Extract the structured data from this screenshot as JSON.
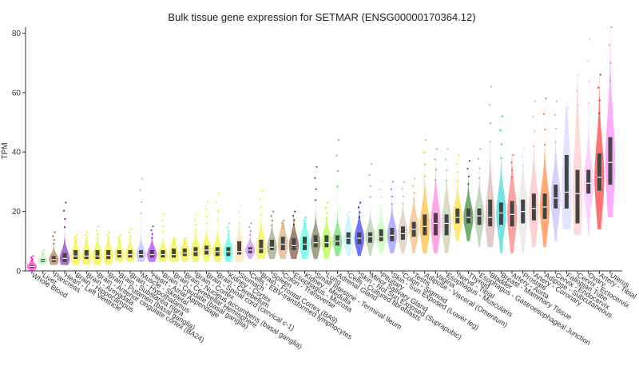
{
  "chart_data": {
    "type": "violin",
    "title": "Bulk tissue gene expression for SETMAR (ENSG00000170364.12)",
    "ylabel": "TPM",
    "xlabel": "",
    "ylim": [
      0,
      82
    ],
    "yticks": [
      0,
      20,
      40,
      60,
      80
    ],
    "grid": false,
    "categories": [
      "Whole Blood",
      "Liver",
      "Pancreas",
      "Heart - Left Ventricle",
      "Brain - Hippocampus",
      "Brain - Amygdala",
      "Brain - Anterior cingulate cortex (BA24)",
      "Brain - Putamen (basal ganglia)",
      "Brain - Substantia nigra",
      "Brain - Hypothalamus",
      "Muscle - Skeletal",
      "Heart - Atrial Appendage",
      "Brain - Caudate (basal ganglia)",
      "Brain - Cerebellar Hemisphere",
      "Brain - Nucleus accumbens (basal ganglia)",
      "Brain - Cortex",
      "Brain - Spinal cord (cervical c-1)",
      "Brain - Cerebellum",
      "Kidney - Cortex",
      "Stomach",
      "Cells - EBV-transformed lymphocytes",
      "Brain - Frontal Cortex (BA9)",
      "Spleen",
      "Colon - Transverse",
      "Esophagus - Mucosa",
      "Kidney - Medulla",
      "Small Intestine - Terminal Ileum",
      "Lung",
      "Adrenal Gland",
      "Cells - Cultured fibroblasts",
      "Skin - Not Sun Exposed (Suprapubic)",
      "Minor Salivary Gland",
      "Pituitary",
      "Skin - Sun Exposed (Lower leg)",
      "Colon - Sigmoid",
      "Testis",
      "Adipose - Visceral (Omentum)",
      "Vagina",
      "Esophagus - Muscularis",
      "Nerve - Tibial",
      "Thyroid",
      "Esophagus - Gastroesophageal Junction",
      "Bladder",
      "Breast - Mammary Tissue",
      "Artery - Aorta",
      "Prostate",
      "Artery - Coronary",
      "Adipose - Subcutaneous",
      "Cervix - Endocervix",
      "Fallopian Tube",
      "Cervix - Ectocervix",
      "Ovary",
      "Artery - Tibial",
      "Uterus"
    ],
    "colors": [
      "#ff00bb",
      "#aaeeaa",
      "#995522",
      "#660099",
      "#eeee00",
      "#eeee00",
      "#eeee00",
      "#eeee00",
      "#eeee00",
      "#eeee00",
      "#aaaaff",
      "#9900ff",
      "#eeee00",
      "#eeee00",
      "#eeee00",
      "#eeee00",
      "#eeee00",
      "#eeee00",
      "#22ffdd",
      "#ffdd99",
      "#cc66ff",
      "#eeee00",
      "#778855",
      "#cc9955",
      "#552200",
      "#22ffdd",
      "#555522",
      "#99ff00",
      "#33dd33",
      "#aaeeff",
      "#0000ff",
      "#99bb88",
      "#aaff99",
      "#7777ff",
      "#cdb79e",
      "#eeaa55",
      "#ffaa00",
      "#ff5ccd",
      "#bbbb99",
      "#ffd700",
      "#006600",
      "#8fbc8f",
      "#cd9b9b",
      "#00cdcd",
      "#ff5555",
      "#dddddd",
      "#ffaaaa",
      "#ff6600",
      "#bbaaff",
      "#ccccff",
      "#ffbbbb",
      "#ffaaff",
      "#ff0000",
      "#ff66ff"
    ],
    "medians": [
      1.5,
      3.5,
      3.8,
      4.2,
      5.0,
      5.0,
      5.0,
      5.2,
      5.5,
      5.5,
      5.5,
      5.5,
      5.5,
      5.5,
      6.0,
      6.5,
      7.0,
      6.5,
      6.5,
      6.5,
      7.0,
      7.5,
      8.0,
      9.0,
      8.5,
      9.0,
      9.5,
      9.5,
      10.0,
      11.0,
      11.0,
      11.5,
      11.5,
      12.0,
      12.5,
      14.0,
      15.0,
      16.0,
      16.0,
      18.0,
      18.0,
      18.5,
      18.0,
      19.5,
      19.0,
      20.0,
      21.0,
      21.5,
      24.5,
      26.5,
      26.0,
      29.5,
      31.5,
      36.5
    ],
    "q1": [
      1.0,
      3.0,
      3.0,
      3.0,
      4.0,
      4.0,
      4.0,
      4.0,
      4.5,
      4.5,
      4.5,
      4.5,
      4.5,
      4.5,
      5.0,
      5.0,
      5.5,
      5.0,
      5.0,
      5.5,
      6.0,
      6.0,
      7.0,
      7.0,
      7.0,
      7.0,
      8.0,
      8.0,
      8.5,
      9.0,
      9.0,
      9.5,
      10.0,
      10.0,
      10.5,
      11.5,
      12.0,
      12.0,
      12.0,
      16.0,
      16.0,
      15.5,
      15.0,
      15.5,
      15.0,
      16.0,
      17.0,
      17.5,
      21.0,
      21.0,
      16.0,
      26.0,
      27.0,
      29.0
    ],
    "q3": [
      2.0,
      4.0,
      5.0,
      6.0,
      7.0,
      7.0,
      7.0,
      7.0,
      7.0,
      7.0,
      7.0,
      7.0,
      7.0,
      7.5,
      7.5,
      8.0,
      8.5,
      8.0,
      8.0,
      10.0,
      8.0,
      10.5,
      10.5,
      11.5,
      11.0,
      11.5,
      12.0,
      12.0,
      12.0,
      13.0,
      13.0,
      13.0,
      14.0,
      14.5,
      15.0,
      16.5,
      19.0,
      19.5,
      19.0,
      21.0,
      21.0,
      21.0,
      24.0,
      23.0,
      23.5,
      24.0,
      26.0,
      26.0,
      29.0,
      39.0,
      34.0,
      34.0,
      39.5,
      45.0
    ],
    "mins": [
      0,
      2,
      2,
      2,
      2,
      2,
      2,
      2,
      3,
      3,
      3,
      3,
      3,
      3,
      3,
      3,
      3,
      3,
      3,
      3,
      4,
      4,
      4,
      4,
      4,
      4,
      4,
      4,
      5,
      5,
      5,
      5,
      6,
      6,
      6,
      6,
      6,
      6,
      6,
      10,
      10,
      8,
      8,
      6,
      6,
      6,
      8,
      8,
      10,
      14,
      12,
      12,
      14,
      18
    ],
    "maxs": [
      5,
      7,
      13,
      23,
      12,
      13,
      15,
      13,
      12,
      14,
      31,
      15,
      19,
      11,
      11,
      19,
      23,
      26,
      16,
      22,
      16,
      27,
      20,
      17,
      20,
      18,
      35,
      23,
      44,
      20,
      23,
      36,
      30,
      30,
      30,
      31,
      44,
      41,
      41,
      39,
      37,
      41,
      62,
      52,
      39,
      41,
      57,
      58,
      57,
      55,
      66,
      78,
      66,
      82
    ]
  }
}
